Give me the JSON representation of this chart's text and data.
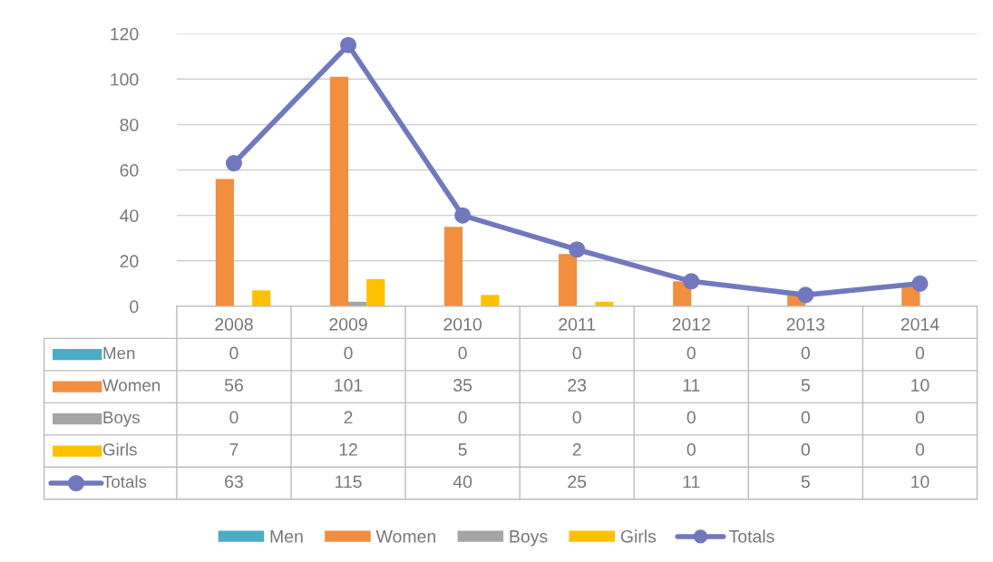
{
  "chart_data": {
    "type": "bar",
    "categories": [
      "2008",
      "2009",
      "2010",
      "2011",
      "2012",
      "2013",
      "2014"
    ],
    "series": [
      {
        "name": "Men",
        "color": "#4bacc6",
        "values": [
          0,
          0,
          0,
          0,
          0,
          0,
          0
        ]
      },
      {
        "name": "Women",
        "color": "#f28e3f",
        "values": [
          56,
          101,
          35,
          23,
          11,
          5,
          10
        ]
      },
      {
        "name": "Boys",
        "color": "#a5a5a5",
        "values": [
          0,
          2,
          0,
          0,
          0,
          0,
          0
        ]
      },
      {
        "name": "Girls",
        "color": "#ffc000",
        "values": [
          7,
          12,
          5,
          2,
          0,
          0,
          0
        ]
      },
      {
        "name": "Totals",
        "type": "line",
        "color": "#7178bd",
        "values": [
          63,
          115,
          40,
          25,
          11,
          5,
          10
        ]
      }
    ],
    "ylim": [
      0,
      120
    ],
    "yticks": [
      0,
      20,
      40,
      60,
      80,
      100,
      120
    ],
    "grid": "y",
    "legend": "bottom",
    "marker": "circle",
    "data_labels": true
  }
}
